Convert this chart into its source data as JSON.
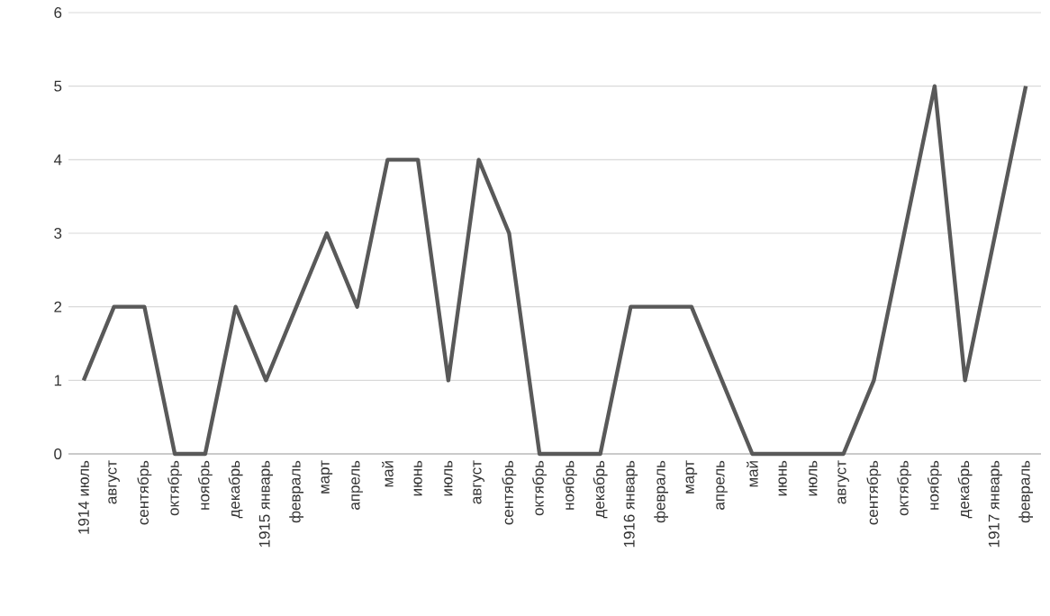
{
  "chart_data": {
    "type": "line",
    "categories": [
      "1914 июль",
      "август",
      "сентябрь",
      "октябрь",
      "ноябрь",
      "декабрь",
      "1915 январь",
      "февраль",
      "март",
      "апрель",
      "май",
      "июнь",
      "июль",
      "август",
      "сентябрь",
      "октябрь",
      "ноябрь",
      "декабрь",
      "1916 январь",
      "февраль",
      "март",
      "апрель",
      "май",
      "июнь",
      "июль",
      "август",
      "сентябрь",
      "октябрь",
      "ноябрь",
      "декабрь",
      "1917 январь",
      "февраль"
    ],
    "series": [
      {
        "color": "#595959",
        "values": [
          1,
          2,
          2,
          0,
          0,
          2,
          1,
          2,
          3,
          2,
          4,
          4,
          1,
          4,
          3,
          0,
          0,
          0,
          2,
          2,
          2,
          1,
          0,
          0,
          0,
          0,
          1,
          3,
          5,
          1,
          3,
          5
        ]
      }
    ],
    "ylim": [
      0,
      6
    ],
    "yticks": [
      0,
      1,
      2,
      3,
      4,
      5,
      6
    ],
    "grid": "y",
    "marker": "none",
    "line_style": "solid"
  }
}
